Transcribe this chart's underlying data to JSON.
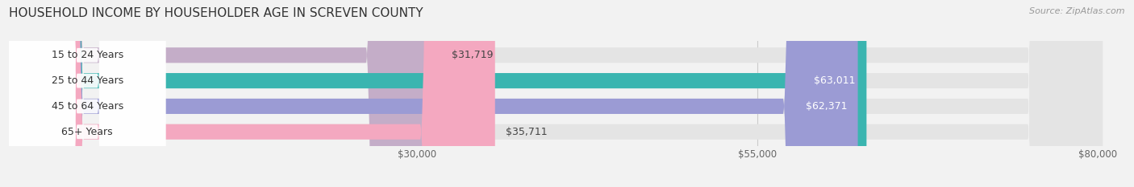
{
  "title": "HOUSEHOLD INCOME BY HOUSEHOLDER AGE IN SCREVEN COUNTY",
  "source": "Source: ZipAtlas.com",
  "categories": [
    "15 to 24 Years",
    "25 to 44 Years",
    "45 to 64 Years",
    "65+ Years"
  ],
  "values": [
    31719,
    63011,
    62371,
    35711
  ],
  "bar_colors": [
    "#c4adc8",
    "#3ab5b0",
    "#9b9bd4",
    "#f4a8c0"
  ],
  "bar_labels": [
    "$31,719",
    "$63,011",
    "$62,371",
    "$35,711"
  ],
  "label_inside": [
    false,
    true,
    true,
    false
  ],
  "xlim": [
    0,
    82000
  ],
  "xticks": [
    30000,
    55000,
    80000
  ],
  "xticklabels": [
    "$30,000",
    "$55,000",
    "$80,000"
  ],
  "figsize": [
    14.06,
    2.33
  ],
  "dpi": 100,
  "bg_color": "#f2f2f2",
  "bar_bg_color": "#e4e4e4",
  "title_fontsize": 11,
  "source_fontsize": 8,
  "label_fontsize": 9,
  "category_fontsize": 9,
  "tick_fontsize": 8.5
}
